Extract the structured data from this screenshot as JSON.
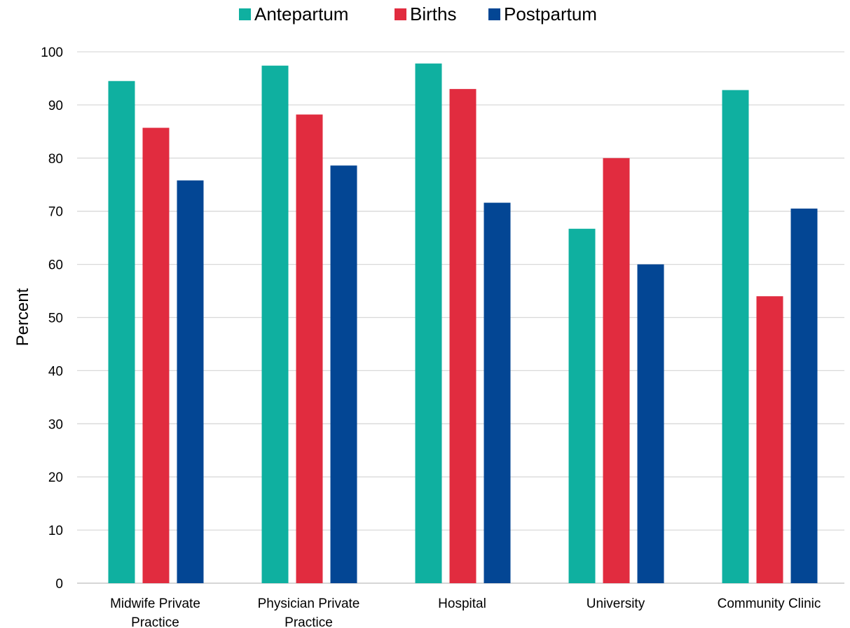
{
  "chart_data": {
    "type": "bar",
    "title": "",
    "xlabel": "",
    "ylabel": "Percent",
    "ylim": [
      0,
      100
    ],
    "yticks": [
      0,
      10,
      20,
      30,
      40,
      50,
      60,
      70,
      80,
      90,
      100
    ],
    "grid": true,
    "legend_position": "top-center",
    "categories": [
      [
        "Midwife Private",
        "Practice"
      ],
      [
        "Physician Private",
        "Practice"
      ],
      [
        "Hospital"
      ],
      [
        "University"
      ],
      [
        "Community Clinic"
      ]
    ],
    "series": [
      {
        "name": "Antepartum",
        "color": "#0fb0a0",
        "values": [
          94.5,
          97.4,
          97.8,
          66.7,
          92.8
        ]
      },
      {
        "name": "Births",
        "color": "#e12c3f",
        "values": [
          85.7,
          88.2,
          93.0,
          80.0,
          54.0
        ]
      },
      {
        "name": "Postpartum",
        "color": "#034694",
        "values": [
          75.8,
          78.6,
          71.6,
          60.0,
          70.5
        ]
      }
    ]
  }
}
